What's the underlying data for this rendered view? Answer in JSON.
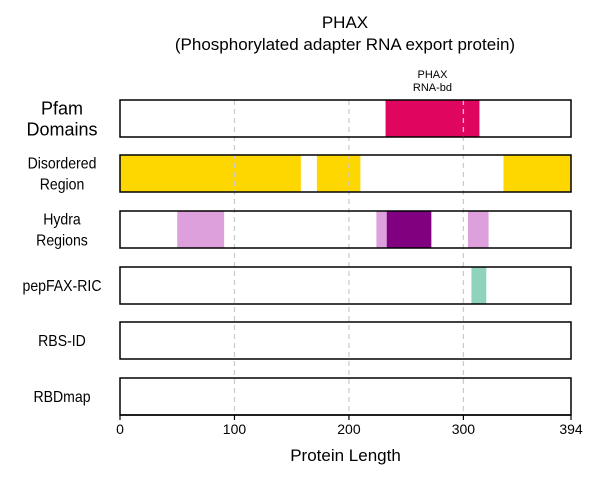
{
  "chart_data": {
    "type": "domain-track",
    "title": "PHAX",
    "subtitle": "(Phosphorylated adapter RNA export protein)",
    "xlabel": "Protein Length",
    "xlim": [
      0,
      394
    ],
    "xticks": [
      0,
      100,
      200,
      300,
      394
    ],
    "grid": "vertical dashed at 100, 200, 300",
    "tracks": [
      {
        "label": "Pfam\nDomains",
        "segments": [
          {
            "start": 232,
            "end": 314,
            "color": "#e0065f",
            "label": "PHAX\nRNA-bd"
          }
        ]
      },
      {
        "label": "Disordered\nRegion",
        "segments": [
          {
            "start": 0,
            "end": 158,
            "color": "#ffd700"
          },
          {
            "start": 172,
            "end": 210,
            "color": "#ffd700"
          },
          {
            "start": 335,
            "end": 394,
            "color": "#ffd700"
          }
        ]
      },
      {
        "label": "Hydra\nRegions",
        "segments": [
          {
            "start": 50,
            "end": 91,
            "color": "#dda0dd"
          },
          {
            "start": 224,
            "end": 233,
            "color": "#dda0dd"
          },
          {
            "start": 233,
            "end": 272,
            "color": "#800080"
          },
          {
            "start": 304,
            "end": 322,
            "color": "#dda0dd"
          }
        ]
      },
      {
        "label": "pepFAX-RIC",
        "segments": [
          {
            "start": 307,
            "end": 320,
            "color": "#8fd3bd"
          }
        ]
      },
      {
        "label": "RBS-ID",
        "segments": []
      },
      {
        "label": "RBDmap",
        "segments": []
      }
    ]
  }
}
